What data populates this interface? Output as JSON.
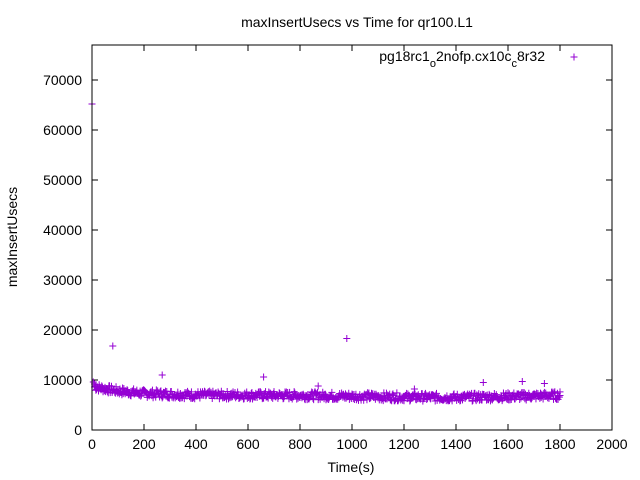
{
  "chart_data": {
    "type": "scatter",
    "title": "maxInsertUsecs vs Time for qr100.L1",
    "xlabel": "Time(s)",
    "ylabel": "maxInsertUsecs",
    "xlim": [
      0,
      2000
    ],
    "ylim": [
      0,
      77000
    ],
    "xticks": [
      0,
      200,
      400,
      600,
      800,
      1000,
      1200,
      1400,
      1600,
      1800,
      2000
    ],
    "yticks": [
      0,
      10000,
      20000,
      30000,
      40000,
      50000,
      60000,
      70000
    ],
    "grid": false,
    "legend_position": "top-right",
    "series": [
      {
        "name": "pg18rc1_o2nofp.cx10c_c8r32",
        "legend": {
          "base": "pg18rc1",
          "sub1": "o",
          "mid": "2nofp.cx10c",
          "sub2": "c",
          "tail": "8r32"
        },
        "color": "#9400d3",
        "marker": "plus",
        "points": [
          [
            0,
            65200
          ],
          [
            5,
            9600
          ],
          [
            10,
            9200
          ],
          [
            15,
            8800
          ],
          [
            20,
            8600
          ],
          [
            30,
            8400
          ],
          [
            40,
            8300
          ],
          [
            50,
            8200
          ],
          [
            60,
            8100
          ],
          [
            80,
            16800
          ],
          [
            100,
            7900
          ],
          [
            120,
            7700
          ],
          [
            140,
            7500
          ],
          [
            160,
            7400
          ],
          [
            200,
            7400
          ],
          [
            240,
            7300
          ],
          [
            270,
            11000
          ],
          [
            300,
            7100
          ],
          [
            400,
            7000
          ],
          [
            500,
            7000
          ],
          [
            600,
            6900
          ],
          [
            660,
            10600
          ],
          [
            700,
            6800
          ],
          [
            800,
            6800
          ],
          [
            870,
            8800
          ],
          [
            900,
            6800
          ],
          [
            980,
            18300
          ],
          [
            1000,
            6700
          ],
          [
            1100,
            6600
          ],
          [
            1200,
            6500
          ],
          [
            1240,
            8200
          ],
          [
            1300,
            6400
          ],
          [
            1400,
            6500
          ],
          [
            1500,
            6500
          ],
          [
            1505,
            9500
          ],
          [
            1600,
            6600
          ],
          [
            1655,
            9700
          ],
          [
            1700,
            6700
          ],
          [
            1740,
            9300
          ],
          [
            1800,
            6900
          ]
        ],
        "band": {
          "x_range": [
            10,
            1800
          ],
          "typical": [
            [
              0,
              8700
            ],
            [
              100,
              7800
            ],
            [
              200,
              7300
            ],
            [
              400,
              7000
            ],
            [
              800,
              6900
            ],
            [
              1200,
              6600
            ],
            [
              1400,
              6500
            ],
            [
              1800,
              6900
            ]
          ],
          "spread": 800
        }
      }
    ]
  }
}
